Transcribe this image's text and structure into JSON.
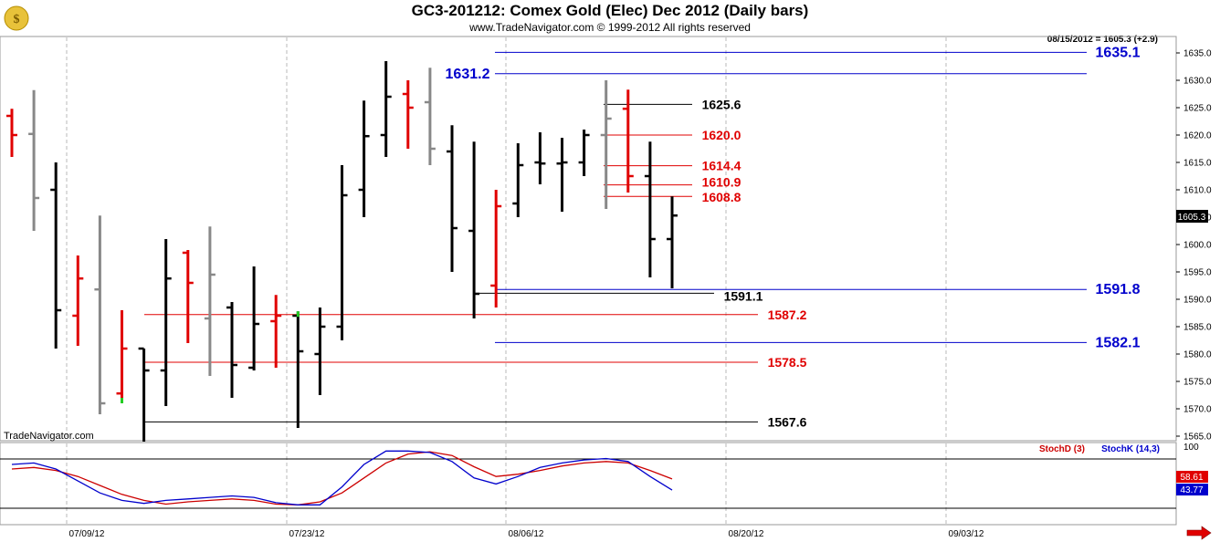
{
  "header": {
    "title": "GC3-201212:  Comex Gold (Elec) Dec 2012  (Daily bars)",
    "copyright": "www.TradeNavigator.com © 1999-2012 All rights reserved",
    "last_quote": "08/15/2012 = 1605.3 (+2.9)",
    "watermark": "TradeNavigator.com"
  },
  "price_badge": "1605.3",
  "osc_badges": {
    "stoch_d": "58.61",
    "stoch_k": "43.77"
  },
  "osc_legend": {
    "stoch_d": "StochD (3)",
    "stoch_k": "StochK (14,3)"
  },
  "osc_top_label": "100",
  "colors": {
    "up": "#000000",
    "down": "#e00000",
    "neutral": "#888888",
    "blue": "#0000cc",
    "red_level": "#e00000"
  },
  "chart_data": {
    "type": "bar",
    "subtype": "ohlc",
    "x_ticks": [
      "07/09/12",
      "07/23/12",
      "08/06/12",
      "08/20/12",
      "09/03/12"
    ],
    "y_ticks": [
      1565.0,
      1570.0,
      1575.0,
      1580.0,
      1585.0,
      1590.0,
      1595.0,
      1600.0,
      1605.0,
      1610.0,
      1615.0,
      1620.0,
      1625.0,
      1630.0,
      1635.0
    ],
    "ylim": [
      1563.5,
      1639.0
    ],
    "bars": [
      {
        "date": "06/29",
        "o": 1623.5,
        "h": 1624.8,
        "l": 1616.0,
        "c": 1620.0,
        "color": "red"
      },
      {
        "date": "07/02",
        "o": 1620.2,
        "h": 1628.2,
        "l": 1602.5,
        "c": 1608.5,
        "color": "gray"
      },
      {
        "date": "07/03",
        "o": 1610.0,
        "h": 1615.0,
        "l": 1581.0,
        "c": 1588.0,
        "color": "black"
      },
      {
        "date": "07/05",
        "o": 1587.0,
        "h": 1598.0,
        "l": 1581.5,
        "c": 1593.8,
        "color": "red"
      },
      {
        "date": "07/06",
        "o": 1591.8,
        "h": 1605.3,
        "l": 1569.0,
        "c": 1571.0,
        "color": "gray"
      },
      {
        "date": "07/09",
        "o": 1572.8,
        "h": 1588.0,
        "l": 1571.0,
        "c": 1581.0,
        "color": "red",
        "low_tick_green": true
      },
      {
        "date": "07/10",
        "o": 1581.0,
        "h": 1581.0,
        "l": 1564.0,
        "c": 1577.0,
        "color": "black"
      },
      {
        "date": "07/11",
        "o": 1577.0,
        "h": 1601.0,
        "l": 1570.5,
        "c": 1593.8,
        "color": "black"
      },
      {
        "date": "07/12",
        "o": 1598.5,
        "h": 1599.0,
        "l": 1582.0,
        "c": 1593.0,
        "color": "red"
      },
      {
        "date": "07/13",
        "o": 1586.5,
        "h": 1603.3,
        "l": 1576.0,
        "c": 1594.5,
        "color": "gray"
      },
      {
        "date": "07/16",
        "o": 1588.5,
        "h": 1589.5,
        "l": 1572.0,
        "c": 1578.0,
        "color": "black"
      },
      {
        "date": "07/17",
        "o": 1577.5,
        "h": 1596.0,
        "l": 1577.0,
        "c": 1585.5,
        "color": "black"
      },
      {
        "date": "07/18",
        "o": 1586.0,
        "h": 1590.8,
        "l": 1577.5,
        "c": 1587.0,
        "color": "red"
      },
      {
        "date": "07/19",
        "o": 1587.0,
        "h": 1587.8,
        "l": 1566.5,
        "c": 1580.5,
        "color": "black",
        "high_tick_green": true
      },
      {
        "date": "07/20",
        "o": 1580.0,
        "h": 1588.5,
        "l": 1572.5,
        "c": 1585.0,
        "color": "black"
      },
      {
        "date": "07/23",
        "o": 1585.0,
        "h": 1614.5,
        "l": 1582.5,
        "c": 1609.0,
        "color": "black"
      },
      {
        "date": "07/24",
        "o": 1610.0,
        "h": 1626.3,
        "l": 1605.0,
        "c": 1619.8,
        "color": "black"
      },
      {
        "date": "07/25",
        "o": 1620.0,
        "h": 1633.5,
        "l": 1616.0,
        "c": 1627.0,
        "color": "black"
      },
      {
        "date": "07/26",
        "o": 1627.5,
        "h": 1630.0,
        "l": 1617.5,
        "c": 1625.0,
        "color": "red"
      },
      {
        "date": "07/27",
        "o": 1626.0,
        "h": 1632.3,
        "l": 1614.5,
        "c": 1617.5,
        "color": "gray"
      },
      {
        "date": "07/30",
        "o": 1617.0,
        "h": 1621.8,
        "l": 1595.0,
        "c": 1603.0,
        "color": "black"
      },
      {
        "date": "07/31",
        "o": 1602.5,
        "h": 1618.8,
        "l": 1586.5,
        "c": 1591.0,
        "color": "black"
      },
      {
        "date": "08/01",
        "o": 1592.5,
        "h": 1610.0,
        "l": 1588.5,
        "c": 1607.0,
        "color": "red"
      },
      {
        "date": "08/02",
        "o": 1607.5,
        "h": 1618.5,
        "l": 1605.0,
        "c": 1614.5,
        "color": "black"
      },
      {
        "date": "08/03",
        "o": 1615.0,
        "h": 1620.5,
        "l": 1611.0,
        "c": 1614.8,
        "color": "black"
      },
      {
        "date": "08/06",
        "o": 1614.8,
        "h": 1619.5,
        "l": 1606.0,
        "c": 1615.0,
        "color": "black"
      },
      {
        "date": "08/07",
        "o": 1615.0,
        "h": 1621.0,
        "l": 1612.5,
        "c": 1620.0,
        "color": "black"
      },
      {
        "date": "08/08",
        "o": 1620.0,
        "h": 1630.0,
        "l": 1606.5,
        "c": 1623.0,
        "color": "gray"
      },
      {
        "date": "08/09",
        "o": 1624.8,
        "h": 1628.3,
        "l": 1609.5,
        "c": 1612.5,
        "color": "red"
      },
      {
        "date": "08/10",
        "o": 1612.5,
        "h": 1618.8,
        "l": 1594.0,
        "c": 1601.0,
        "color": "black"
      },
      {
        "date": "08/13",
        "o": 1601.0,
        "h": 1608.8,
        "l": 1592.0,
        "c": 1605.3,
        "color": "black"
      }
    ],
    "levels": [
      {
        "value": 1635.1,
        "label": "1635.1",
        "color": "blue"
      },
      {
        "value": 1631.2,
        "label": "1631.2",
        "color": "blue"
      },
      {
        "value": 1625.6,
        "label": "1625.6",
        "color": "black"
      },
      {
        "value": 1620.0,
        "label": "1620.0",
        "color": "red"
      },
      {
        "value": 1614.4,
        "label": "1614.4",
        "color": "red"
      },
      {
        "value": 1610.9,
        "label": "1610.9",
        "color": "red"
      },
      {
        "value": 1608.8,
        "label": "1608.8",
        "color": "red"
      },
      {
        "value": 1591.8,
        "label": "1591.8",
        "color": "blue"
      },
      {
        "value": 1591.1,
        "label": "1591.1",
        "color": "black"
      },
      {
        "value": 1587.2,
        "label": "1587.2",
        "color": "red"
      },
      {
        "value": 1582.1,
        "label": "1582.1",
        "color": "blue"
      },
      {
        "value": 1578.5,
        "label": "1578.5",
        "color": "red"
      },
      {
        "value": 1567.6,
        "label": "1567.6",
        "color": "black"
      }
    ],
    "oscillator": {
      "ylim": [
        0,
        100
      ],
      "stoch_d": [
        72,
        74,
        70,
        62,
        50,
        38,
        30,
        25,
        28,
        30,
        32,
        30,
        25,
        24,
        28,
        40,
        60,
        80,
        92,
        95,
        90,
        75,
        62,
        65,
        70,
        76,
        80,
        82,
        80,
        70,
        58.61
      ],
      "stoch_k": [
        78,
        80,
        72,
        56,
        40,
        30,
        26,
        30,
        32,
        34,
        36,
        34,
        27,
        24,
        24,
        48,
        78,
        96,
        96,
        94,
        82,
        60,
        52,
        62,
        74,
        80,
        84,
        86,
        82,
        62,
        43.77
      ]
    }
  }
}
